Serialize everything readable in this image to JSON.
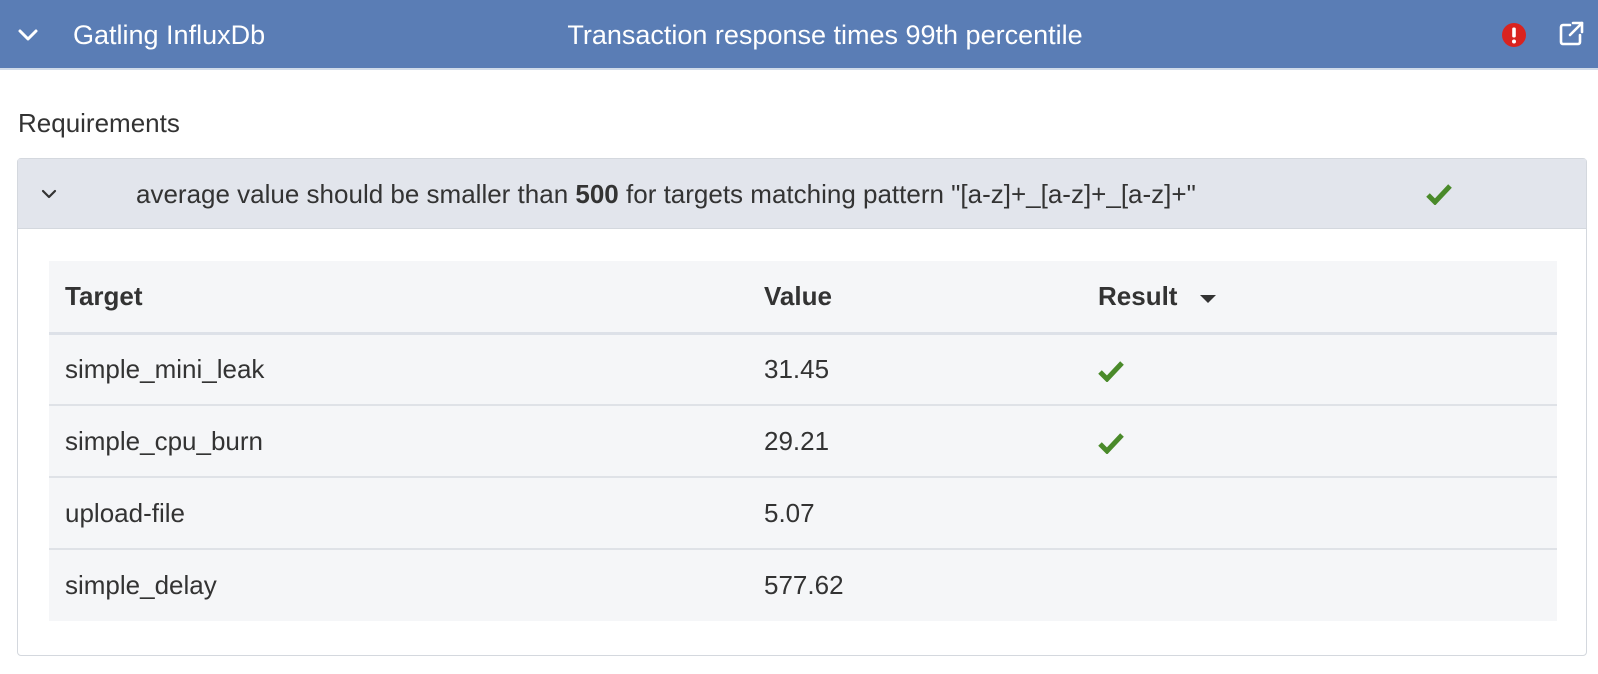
{
  "header": {
    "app_name": "Gatling InfluxDb",
    "title": "Transaction response times 99th percentile",
    "colors": {
      "bar": "#5a7db5",
      "alert": "#d9231f"
    }
  },
  "section_label": "Requirements",
  "requirement": {
    "text_before": "average value should be smaller than ",
    "threshold": "500",
    "text_after": " for targets matching pattern \"[a-z]+_[a-z]+_[a-z]+\"",
    "status_icon": "check-icon",
    "status_color": "#4a8a2a"
  },
  "table": {
    "headers": {
      "target": "Target",
      "value": "Value",
      "result": "Result"
    },
    "sort_icon": "sort-desc-icon",
    "rows": [
      {
        "target": "simple_mini_leak",
        "value": "31.45",
        "pass": true
      },
      {
        "target": "simple_cpu_burn",
        "value": "29.21",
        "pass": true
      },
      {
        "target": "upload-file",
        "value": "5.07",
        "pass": false
      },
      {
        "target": "simple_delay",
        "value": "577.62",
        "pass": false
      }
    ]
  }
}
